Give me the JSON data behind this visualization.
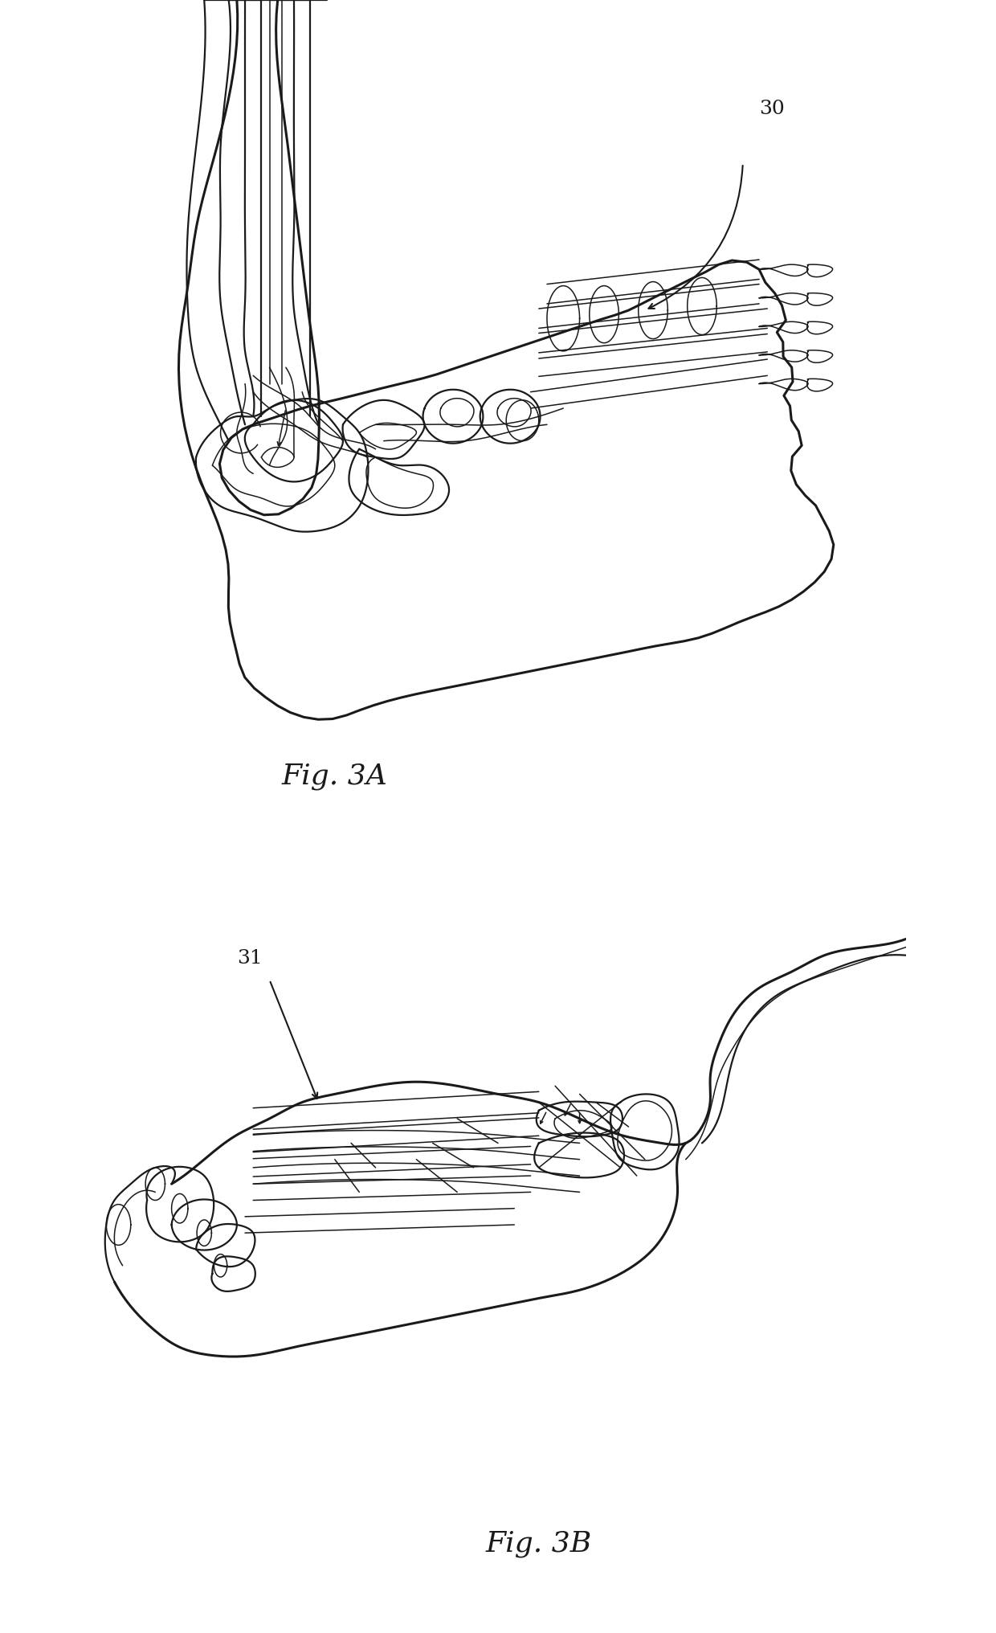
{
  "background_color": "#ffffff",
  "line_color": "#1a1a1a",
  "lw_thick": 2.2,
  "lw_med": 1.6,
  "lw_thin": 1.1,
  "fig3a_label": "Fig. 3A",
  "fig3b_label": "Fig. 3B",
  "ref_30": "30",
  "ref_31": "31"
}
